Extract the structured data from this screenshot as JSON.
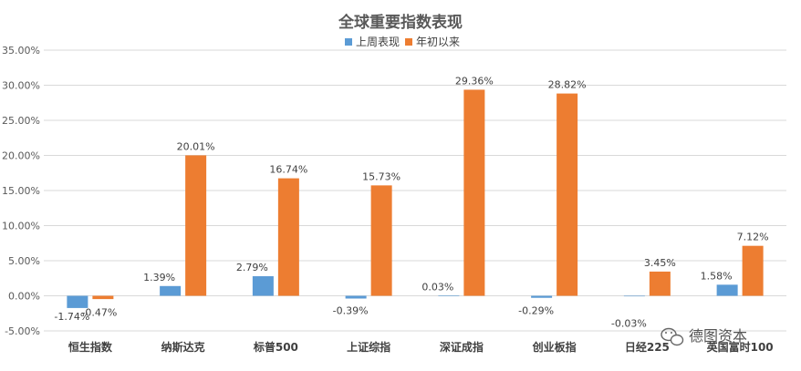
{
  "chart_data": {
    "type": "bar",
    "title": "全球重要指数表现",
    "categories": [
      "恒生指数",
      "纳斯达克",
      "标普500",
      "上证综指",
      "深证成指",
      "创业板指",
      "日经225",
      "英国富时100"
    ],
    "series": [
      {
        "name": "上周表现",
        "color": "#5B9BD5",
        "values": [
          -1.74,
          1.39,
          2.79,
          -0.39,
          0.03,
          -0.29,
          -0.03,
          1.58
        ],
        "labels": [
          "-1.74%",
          "1.39%",
          "2.79%",
          "-0.39%",
          "0.03%",
          "-0.29%",
          "-0.03%",
          "1.58%"
        ]
      },
      {
        "name": "年初以来",
        "color": "#ED7D31",
        "values": [
          -0.47,
          20.01,
          16.74,
          15.73,
          29.36,
          28.82,
          3.45,
          7.12
        ],
        "labels": [
          "-0.47%",
          "20.01%",
          "16.74%",
          "15.73%",
          "29.36%",
          "28.82%",
          "3.45%",
          "7.12%"
        ]
      }
    ],
    "ylim": [
      -5,
      35
    ],
    "y_ticks": [
      -5,
      0,
      5,
      10,
      15,
      20,
      25,
      30,
      35
    ],
    "y_tick_labels": [
      "-5.00%",
      "0.00%",
      "5.00%",
      "10.00%",
      "15.00%",
      "20.00%",
      "25.00%",
      "30.00%",
      "35.00%"
    ],
    "grid": true,
    "legend_position": "top"
  },
  "watermark": {
    "text": "德图资本",
    "icon": "wechat-icon"
  }
}
